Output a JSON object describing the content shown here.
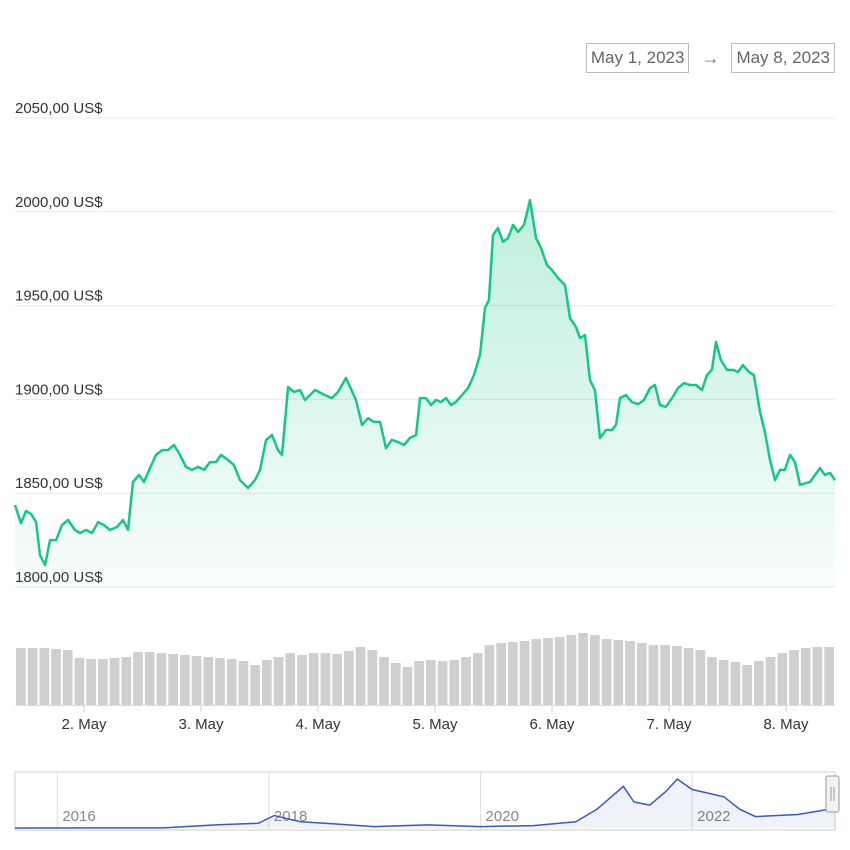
{
  "date_range": {
    "from": "May 1, 2023",
    "separator": "→",
    "to": "May 8, 2023"
  },
  "chart_data": [
    {
      "type": "area",
      "color": "#16c784",
      "grid": true,
      "xlim": [
        1.41,
        8.419
      ],
      "ylim": [
        1800,
        2050
      ],
      "xticks": [
        {
          "value": 2,
          "label": "2. May"
        },
        {
          "value": 3,
          "label": "3. May"
        },
        {
          "value": 4,
          "label": "4. May"
        },
        {
          "value": 5,
          "label": "5. May"
        },
        {
          "value": 6,
          "label": "6. May"
        },
        {
          "value": 7,
          "label": "7. May"
        },
        {
          "value": 8,
          "label": "8. May"
        }
      ],
      "yticks": [
        {
          "value": 1800,
          "label": "1800,00 US$"
        },
        {
          "value": 1850,
          "label": "1850,00 US$"
        },
        {
          "value": 1900,
          "label": "1900,00 US$"
        },
        {
          "value": 1950,
          "label": "1950,00 US$"
        },
        {
          "value": 2000,
          "label": "2000,00 US$"
        },
        {
          "value": 2050,
          "label": "2050,00 US$"
        }
      ],
      "x": [
        1.41,
        1.461,
        1.504,
        1.547,
        1.59,
        1.624,
        1.667,
        1.709,
        1.761,
        1.812,
        1.863,
        1.923,
        1.966,
        2.017,
        2.068,
        2.12,
        2.171,
        2.222,
        2.282,
        2.333,
        2.376,
        2.419,
        2.47,
        2.513,
        2.564,
        2.615,
        2.667,
        2.718,
        2.769,
        2.82,
        2.872,
        2.923,
        2.974,
        3.026,
        3.077,
        3.128,
        3.171,
        3.231,
        3.282,
        3.333,
        3.402,
        3.461,
        3.504,
        3.556,
        3.607,
        3.658,
        3.692,
        3.744,
        3.795,
        3.846,
        3.889,
        3.974,
        4.06,
        4.12,
        4.171,
        4.239,
        4.325,
        4.376,
        4.427,
        4.479,
        4.53,
        4.581,
        4.632,
        4.684,
        4.735,
        4.786,
        4.838,
        4.872,
        4.923,
        4.966,
        5.008,
        5.051,
        5.094,
        5.137,
        5.179,
        5.231,
        5.282,
        5.333,
        5.385,
        5.427,
        5.461,
        5.496,
        5.538,
        5.581,
        5.624,
        5.667,
        5.709,
        5.761,
        5.812,
        5.863,
        5.906,
        5.957,
        6.0,
        6.051,
        6.111,
        6.154,
        6.205,
        6.239,
        6.282,
        6.325,
        6.367,
        6.41,
        6.461,
        6.513,
        6.547,
        6.581,
        6.632,
        6.684,
        6.735,
        6.786,
        6.838,
        6.88,
        6.923,
        6.974,
        7.026,
        7.077,
        7.128,
        7.179,
        7.231,
        7.282,
        7.325,
        7.367,
        7.402,
        7.444,
        7.496,
        7.547,
        7.59,
        7.632,
        7.684,
        7.726,
        7.778,
        7.82,
        7.863,
        7.906,
        7.949,
        7.991,
        8.034,
        8.077,
        8.12,
        8.171,
        8.205,
        8.248,
        8.291,
        8.333,
        8.376,
        8.419
      ],
      "values": [
        1843.7,
        1834,
        1840.5,
        1839,
        1834.6,
        1817,
        1811.7,
        1825,
        1825,
        1833,
        1835.7,
        1830.4,
        1828.8,
        1830.4,
        1828.8,
        1834.6,
        1833,
        1830.4,
        1832,
        1835.7,
        1830.4,
        1856,
        1859.7,
        1856,
        1863.4,
        1870.4,
        1873,
        1873,
        1875.7,
        1870.4,
        1864,
        1862.4,
        1864,
        1862.4,
        1866.6,
        1866.6,
        1870.4,
        1867.7,
        1865,
        1857,
        1852.8,
        1857,
        1862.4,
        1878.4,
        1881,
        1873,
        1870.4,
        1906.6,
        1904,
        1905,
        1899.7,
        1905,
        1902.3,
        1900.7,
        1904,
        1911.4,
        1899.7,
        1886.4,
        1890,
        1888,
        1888,
        1874,
        1878.4,
        1877.3,
        1875.7,
        1879.4,
        1881,
        1900.7,
        1900.7,
        1897,
        1899.7,
        1898.6,
        1900.7,
        1897,
        1898.6,
        1902.3,
        1906,
        1913,
        1923.7,
        1948.7,
        1953,
        1987.6,
        1991.4,
        1984,
        1986,
        1993,
        1989.3,
        1993,
        2006.3,
        1986,
        1980.7,
        1971.6,
        1969,
        1964.7,
        1961,
        1943.4,
        1938.6,
        1932.7,
        1934.3,
        1910.3,
        1905,
        1879.4,
        1883.7,
        1883.7,
        1886.4,
        1900.7,
        1902.3,
        1898.6,
        1897.5,
        1899.7,
        1906,
        1907.7,
        1897,
        1896,
        1900.7,
        1906,
        1908.7,
        1907.7,
        1907.7,
        1905,
        1913,
        1915.7,
        1930.6,
        1921,
        1915.7,
        1915.7,
        1914.6,
        1918.3,
        1914.6,
        1913,
        1893.3,
        1882.6,
        1867.7,
        1857,
        1862.4,
        1862.4,
        1870.4,
        1866.6,
        1854.4,
        1855.4,
        1856,
        1859.7,
        1863.4,
        1859.7,
        1860.8,
        1857
      ]
    },
    {
      "type": "bar",
      "color": "#cfcfcf",
      "ylim": [
        0,
        80
      ],
      "values": [
        57,
        57,
        57,
        56,
        55,
        47,
        46,
        46,
        47,
        48,
        53,
        53,
        52,
        51,
        50,
        49,
        48,
        47,
        46,
        44,
        40,
        45,
        48,
        52,
        50,
        52,
        52,
        51,
        54,
        58,
        55,
        48,
        42,
        38,
        44,
        45,
        44,
        45,
        48,
        52,
        60,
        62,
        63,
        64,
        66,
        67,
        68,
        70,
        72,
        70,
        66,
        65,
        64,
        62,
        60,
        60,
        59,
        57,
        55,
        48,
        45,
        43,
        40,
        44,
        48,
        52,
        55,
        57,
        58,
        58
      ]
    },
    {
      "type": "line",
      "color": "#3b5bb5",
      "xlim": [
        2015.6,
        2023.35
      ],
      "ylim": [
        0,
        5000
      ],
      "xticks": [
        2016,
        2018,
        2020,
        2022
      ],
      "x": [
        2015.6,
        2016.5,
        2017.0,
        2017.5,
        2017.9,
        2018.05,
        2018.3,
        2018.6,
        2019.0,
        2019.5,
        2020.0,
        2020.5,
        2020.9,
        2021.1,
        2021.35,
        2021.45,
        2021.6,
        2021.75,
        2021.86,
        2022.0,
        2022.3,
        2022.45,
        2022.6,
        2022.9,
        2023.0,
        2023.35
      ],
      "values": [
        1,
        12,
        10,
        300,
        450,
        1200,
        600,
        400,
        130,
        300,
        130,
        230,
        600,
        1800,
        4000,
        2500,
        2200,
        3500,
        4700,
        3700,
        3000,
        1800,
        1100,
        1250,
        1300,
        1900
      ]
    }
  ]
}
